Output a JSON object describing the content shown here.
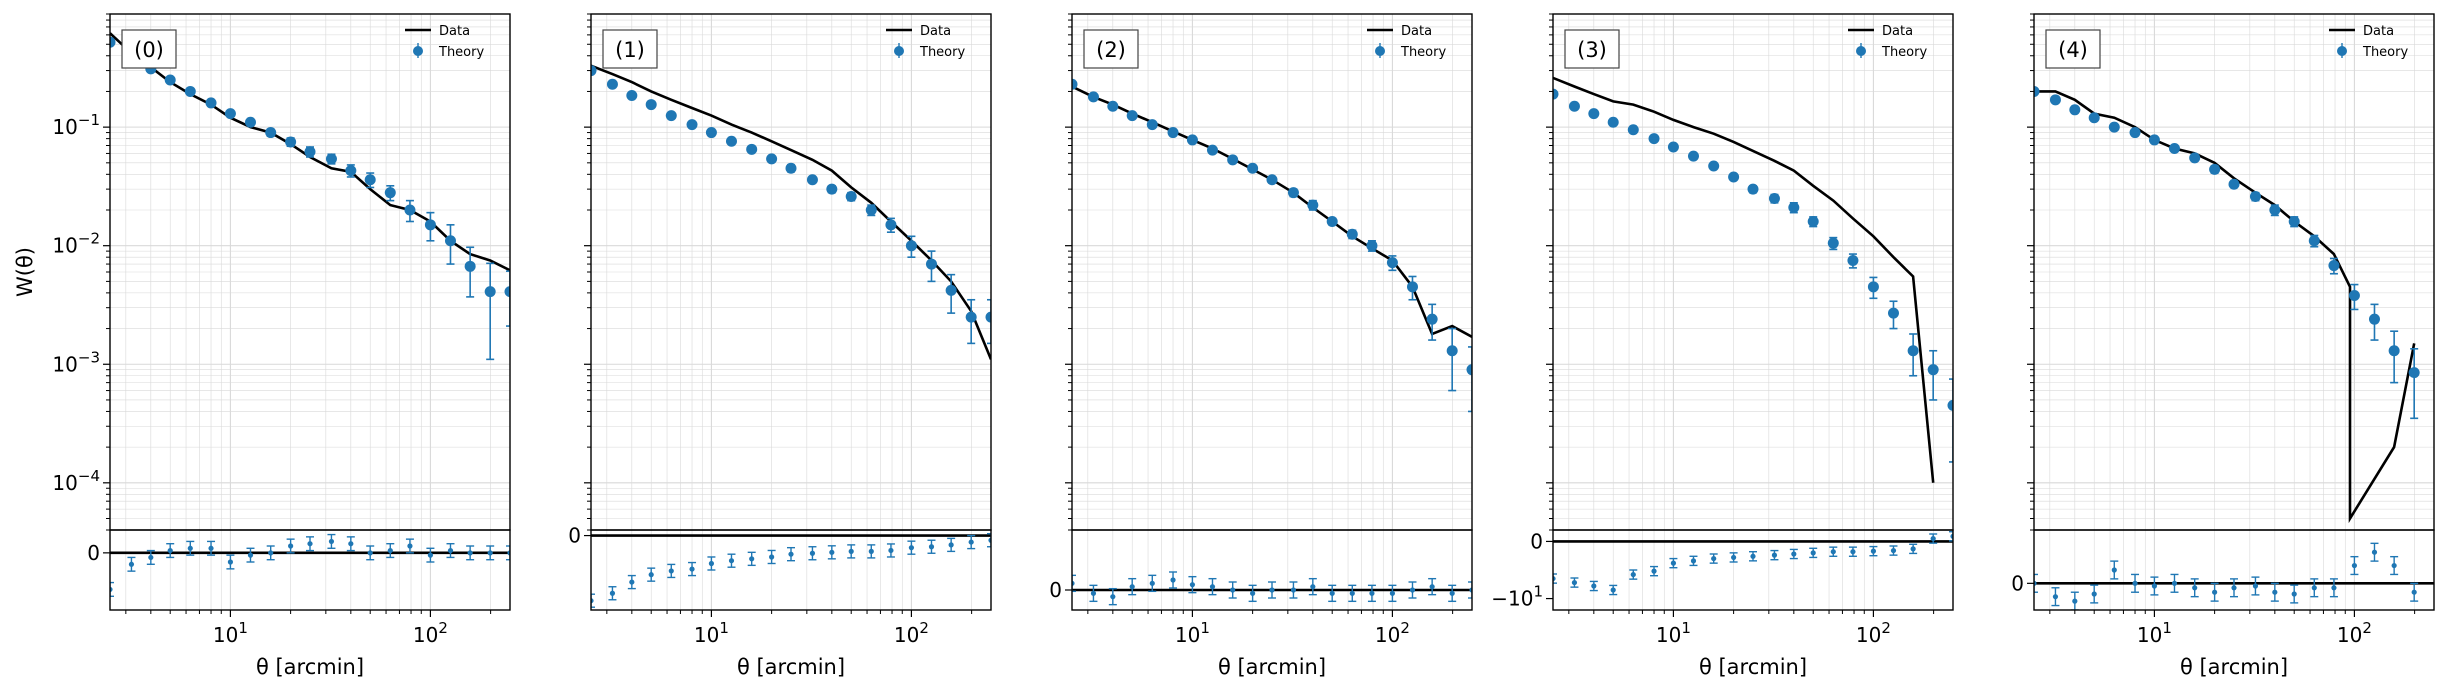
{
  "chart_data": [
    {
      "type": "line",
      "panel_label": "(0)",
      "xlabel": "θ [arcmin]",
      "ylabel": "W(θ)",
      "xscale": "log",
      "yscale": "log",
      "xlim": [
        2.5,
        250
      ],
      "ylim": [
        4e-05,
        0.9
      ],
      "residual_ylim": [
        -0.25,
        0.1
      ],
      "x_tick_labels": [
        "10¹",
        "10²"
      ],
      "y_tick_labels": [
        "10⁻⁴",
        "10⁻³",
        "10⁻²",
        "10⁻¹"
      ],
      "residual_tick_labels": [
        "0"
      ],
      "legend": {
        "position": "top-right",
        "entries": [
          "Data",
          "Theory"
        ]
      },
      "grid": true,
      "series": [
        {
          "name": "Data",
          "style": "line",
          "x": [
            2.5,
            3.2,
            4,
            5,
            6.3,
            8,
            10,
            12.6,
            15.9,
            20,
            25,
            32,
            40,
            50,
            63,
            79,
            100,
            126,
            158,
            199,
            250
          ],
          "y": [
            0.62,
            0.42,
            0.32,
            0.24,
            0.19,
            0.155,
            0.12,
            0.1,
            0.09,
            0.072,
            0.056,
            0.045,
            0.042,
            0.03,
            0.022,
            0.02,
            0.016,
            0.011,
            0.0085,
            0.0075,
            0.0062
          ]
        },
        {
          "name": "Theory",
          "style": "points",
          "x": [
            2.5,
            3.2,
            4,
            5,
            6.3,
            8,
            10,
            12.6,
            15.9,
            20,
            25,
            32,
            40,
            50,
            63,
            79,
            100,
            126,
            158,
            199,
            250
          ],
          "y": [
            0.52,
            0.39,
            0.31,
            0.25,
            0.2,
            0.16,
            0.13,
            0.11,
            0.09,
            0.075,
            0.062,
            0.054,
            0.043,
            0.036,
            0.028,
            0.02,
            0.015,
            0.011,
            0.0067,
            0.0041,
            0.0041
          ],
          "yerr": [
            0.02,
            0.015,
            0.012,
            0.01,
            0.009,
            0.008,
            0.007,
            0.006,
            0.006,
            0.006,
            0.006,
            0.005,
            0.005,
            0.005,
            0.004,
            0.004,
            0.004,
            0.004,
            0.003,
            0.003,
            0.002
          ]
        }
      ],
      "residuals": {
        "x": [
          2.5,
          3.2,
          4,
          5,
          6.3,
          8,
          10,
          12.6,
          15.9,
          20,
          25,
          32,
          40,
          50,
          63,
          79,
          100,
          126,
          158,
          199,
          250
        ],
        "y": [
          -0.16,
          -0.05,
          -0.02,
          0.01,
          0.02,
          0.02,
          -0.04,
          -0.01,
          0.0,
          0.03,
          0.04,
          0.05,
          0.04,
          0.0,
          0.01,
          0.03,
          -0.01,
          0.01,
          0.0,
          0.0,
          0.0
        ],
        "yerr": [
          0.03,
          0.03,
          0.03,
          0.03,
          0.03,
          0.03,
          0.03,
          0.03,
          0.03,
          0.03,
          0.03,
          0.03,
          0.03,
          0.03,
          0.03,
          0.03,
          0.03,
          0.03,
          0.03,
          0.03,
          0.03
        ]
      }
    },
    {
      "type": "line",
      "panel_label": "(1)",
      "xlabel": "θ [arcmin]",
      "ylabel": "",
      "xscale": "log",
      "yscale": "log",
      "xlim": [
        2.5,
        250
      ],
      "ylim": [
        4e-05,
        0.9
      ],
      "residual_ylim": [
        -0.8,
        0.06
      ],
      "x_tick_labels": [
        "10¹",
        "10²"
      ],
      "y_tick_labels": [],
      "residual_tick_labels": [
        "0"
      ],
      "legend": {
        "position": "top-right",
        "entries": [
          "Data",
          "Theory"
        ]
      },
      "grid": true,
      "series": [
        {
          "name": "Data",
          "style": "line",
          "x": [
            2.5,
            3.2,
            4,
            5,
            6.3,
            8,
            10,
            12.6,
            15.9,
            20,
            25,
            32,
            40,
            50,
            63,
            79,
            100,
            126,
            158,
            199,
            250
          ],
          "y": [
            0.33,
            0.28,
            0.24,
            0.2,
            0.17,
            0.145,
            0.125,
            0.105,
            0.09,
            0.076,
            0.064,
            0.053,
            0.043,
            0.031,
            0.023,
            0.016,
            0.011,
            0.0075,
            0.005,
            0.0028,
            0.0011
          ]
        },
        {
          "name": "Theory",
          "style": "points",
          "x": [
            2.5,
            3.2,
            4,
            5,
            6.3,
            8,
            10,
            12.6,
            15.9,
            20,
            25,
            32,
            40,
            50,
            63,
            79,
            100,
            126,
            158,
            199,
            250
          ],
          "y": [
            0.3,
            0.23,
            0.185,
            0.155,
            0.125,
            0.105,
            0.09,
            0.076,
            0.065,
            0.054,
            0.045,
            0.036,
            0.03,
            0.026,
            0.02,
            0.015,
            0.01,
            0.007,
            0.0042,
            0.0025,
            0.0025
          ],
          "yerr": [
            0.01,
            0.008,
            0.006,
            0.005,
            0.004,
            0.004,
            0.004,
            0.003,
            0.003,
            0.003,
            0.003,
            0.002,
            0.002,
            0.002,
            0.002,
            0.002,
            0.002,
            0.002,
            0.0015,
            0.001,
            0.001
          ]
        }
      ],
      "residuals": {
        "x": [
          2.5,
          3.2,
          4,
          5,
          6.3,
          8,
          10,
          12.6,
          15.9,
          20,
          25,
          32,
          40,
          50,
          63,
          79,
          100,
          126,
          158,
          199,
          250
        ],
        "y": [
          -0.7,
          -0.62,
          -0.5,
          -0.42,
          -0.38,
          -0.36,
          -0.3,
          -0.27,
          -0.25,
          -0.23,
          -0.2,
          -0.19,
          -0.18,
          -0.17,
          -0.17,
          -0.16,
          -0.13,
          -0.12,
          -0.1,
          -0.07,
          -0.05
        ],
        "yerr": [
          0.07,
          0.07,
          0.07,
          0.07,
          0.07,
          0.07,
          0.07,
          0.07,
          0.07,
          0.07,
          0.07,
          0.07,
          0.07,
          0.07,
          0.07,
          0.07,
          0.07,
          0.07,
          0.07,
          0.07,
          0.07
        ]
      }
    },
    {
      "type": "line",
      "panel_label": "(2)",
      "xlabel": "θ [arcmin]",
      "ylabel": "",
      "xscale": "log",
      "yscale": "log",
      "xlim": [
        2.5,
        250
      ],
      "ylim": [
        4e-05,
        0.9
      ],
      "residual_ylim": [
        -0.3,
        0.9
      ],
      "x_tick_labels": [
        "10¹",
        "10²"
      ],
      "y_tick_labels": [],
      "residual_tick_labels": [
        "0"
      ],
      "legend": {
        "position": "top-right",
        "entries": [
          "Data",
          "Theory"
        ]
      },
      "grid": true,
      "series": [
        {
          "name": "Data",
          "style": "line",
          "x": [
            2.5,
            3.2,
            4,
            5,
            6.3,
            8,
            10,
            12.6,
            15.9,
            20,
            25,
            32,
            40,
            50,
            63,
            79,
            100,
            126,
            158,
            199,
            250
          ],
          "y": [
            0.22,
            0.18,
            0.155,
            0.13,
            0.11,
            0.092,
            0.078,
            0.066,
            0.054,
            0.044,
            0.036,
            0.028,
            0.021,
            0.016,
            0.012,
            0.0095,
            0.0075,
            0.0045,
            0.0018,
            0.0021,
            0.0017
          ]
        },
        {
          "name": "Theory",
          "style": "points",
          "x": [
            2.5,
            3.2,
            4,
            5,
            6.3,
            8,
            10,
            12.6,
            15.9,
            20,
            25,
            32,
            40,
            50,
            63,
            79,
            100,
            126,
            158,
            199,
            250
          ],
          "y": [
            0.23,
            0.18,
            0.15,
            0.125,
            0.105,
            0.09,
            0.078,
            0.064,
            0.053,
            0.045,
            0.036,
            0.028,
            0.022,
            0.016,
            0.0125,
            0.01,
            0.0072,
            0.0045,
            0.0024,
            0.0013,
            0.0009
          ],
          "yerr": [
            0.01,
            0.008,
            0.006,
            0.005,
            0.004,
            0.003,
            0.003,
            0.003,
            0.002,
            0.002,
            0.002,
            0.002,
            0.002,
            0.001,
            0.001,
            0.001,
            0.001,
            0.001,
            0.0008,
            0.0007,
            0.0005
          ]
        }
      ],
      "residuals": {
        "x": [
          2.5,
          3.2,
          4,
          5,
          6.3,
          8,
          10,
          12.6,
          15.9,
          20,
          25,
          32,
          40,
          50,
          63,
          79,
          100,
          126,
          158,
          199,
          250
        ],
        "y": [
          0.1,
          -0.05,
          -0.1,
          0.05,
          0.1,
          0.15,
          0.08,
          0.05,
          0.0,
          -0.05,
          0.0,
          0.0,
          0.05,
          -0.05,
          -0.05,
          -0.05,
          -0.05,
          0.0,
          0.05,
          -0.05,
          0.0
        ],
        "yerr": [
          0.12,
          0.12,
          0.12,
          0.12,
          0.12,
          0.12,
          0.12,
          0.12,
          0.12,
          0.12,
          0.12,
          0.12,
          0.12,
          0.12,
          0.12,
          0.12,
          0.12,
          0.12,
          0.12,
          0.12,
          0.12
        ]
      }
    },
    {
      "type": "line",
      "panel_label": "(3)",
      "xlabel": "θ [arcmin]",
      "ylabel": "",
      "xscale": "log",
      "yscale": "log",
      "xlim": [
        2.5,
        250
      ],
      "ylim": [
        4e-05,
        0.9
      ],
      "residual_ylim": [
        -12,
        2
      ],
      "x_tick_labels": [
        "10¹",
        "10²"
      ],
      "y_tick_labels": [],
      "residual_tick_labels": [
        "0",
        "−10¹"
      ],
      "legend": {
        "position": "top-right",
        "entries": [
          "Data",
          "Theory"
        ]
      },
      "grid": true,
      "series": [
        {
          "name": "Data",
          "style": "line",
          "x": [
            2.5,
            3.2,
            4,
            5,
            6.3,
            8,
            10,
            12.6,
            15.9,
            20,
            25,
            32,
            40,
            50,
            63,
            79,
            100,
            126,
            158,
            199
          ],
          "y": [
            0.26,
            0.22,
            0.19,
            0.165,
            0.155,
            0.135,
            0.115,
            0.1,
            0.088,
            0.075,
            0.063,
            0.052,
            0.043,
            0.032,
            0.024,
            0.017,
            0.012,
            0.008,
            0.0055,
            0.0001
          ]
        },
        {
          "name": "Theory",
          "style": "points",
          "x": [
            2.5,
            3.2,
            4,
            5,
            6.3,
            8,
            10,
            12.6,
            15.9,
            20,
            25,
            32,
            40,
            50,
            63,
            79,
            100,
            126,
            158,
            199,
            250
          ],
          "y": [
            0.19,
            0.15,
            0.13,
            0.11,
            0.095,
            0.08,
            0.068,
            0.057,
            0.047,
            0.038,
            0.03,
            0.025,
            0.021,
            0.016,
            0.0105,
            0.0075,
            0.0045,
            0.0027,
            0.0013,
            0.0009,
            0.00045
          ],
          "yerr": [
            0.006,
            0.005,
            0.004,
            0.004,
            0.003,
            0.003,
            0.003,
            0.002,
            0.002,
            0.002,
            0.002,
            0.002,
            0.002,
            0.0015,
            0.0012,
            0.001,
            0.0009,
            0.0007,
            0.0005,
            0.0004,
            0.0003
          ]
        }
      ],
      "residuals": {
        "x": [
          2.5,
          3.2,
          4,
          5,
          6.3,
          8,
          10,
          12.6,
          15.9,
          20,
          25,
          32,
          40,
          50,
          63,
          79,
          100,
          126,
          158,
          199,
          250
        ],
        "y": [
          -6.5,
          -7.2,
          -7.8,
          -8.5,
          -5.8,
          -5.2,
          -3.8,
          -3.4,
          -3.0,
          -2.8,
          -2.6,
          -2.4,
          -2.2,
          -2.0,
          -1.8,
          -1.8,
          -1.7,
          -1.6,
          -1.3,
          0.5,
          0.9
        ],
        "yerr": [
          0.8,
          0.8,
          0.8,
          0.8,
          0.8,
          0.8,
          0.8,
          0.8,
          0.8,
          0.8,
          0.8,
          0.8,
          0.8,
          0.8,
          0.8,
          0.8,
          0.8,
          0.8,
          0.8,
          0.8,
          0.8
        ]
      }
    },
    {
      "type": "line",
      "panel_label": "(4)",
      "xlabel": "θ [arcmin]",
      "ylabel": "",
      "xscale": "log",
      "yscale": "log",
      "xlim": [
        2.5,
        250
      ],
      "ylim": [
        4e-05,
        0.9
      ],
      "residual_ylim": [
        -0.3,
        0.6
      ],
      "x_tick_labels": [
        "10¹",
        "10²"
      ],
      "y_tick_labels": [],
      "residual_tick_labels": [
        "0"
      ],
      "legend": {
        "position": "top-right",
        "entries": [
          "Data",
          "Theory"
        ]
      },
      "grid": true,
      "series": [
        {
          "name": "Data",
          "style": "line",
          "x": [
            2.5,
            3.2,
            4,
            5,
            6.3,
            8,
            10,
            12.6,
            15.9,
            20,
            25,
            32,
            40,
            50,
            63,
            79,
            95,
            95,
            158,
            158,
            199
          ],
          "y": [
            0.2,
            0.2,
            0.17,
            0.13,
            0.12,
            0.1,
            0.078,
            0.066,
            0.06,
            0.05,
            0.037,
            0.028,
            0.022,
            0.016,
            0.012,
            0.0085,
            0.0045,
            5e-05,
            0.0002,
            0.0002,
            0.0015
          ]
        },
        {
          "name": "Theory",
          "style": "points",
          "x": [
            2.5,
            3.2,
            4,
            5,
            6.3,
            8,
            10,
            12.6,
            15.9,
            20,
            25,
            32,
            40,
            50,
            63,
            79,
            100,
            126,
            158,
            199
          ],
          "y": [
            0.2,
            0.17,
            0.14,
            0.12,
            0.1,
            0.09,
            0.078,
            0.066,
            0.055,
            0.044,
            0.033,
            0.026,
            0.02,
            0.016,
            0.011,
            0.0068,
            0.0038,
            0.0024,
            0.0013,
            0.00085
          ],
          "yerr": [
            0.01,
            0.008,
            0.007,
            0.006,
            0.005,
            0.004,
            0.004,
            0.003,
            0.003,
            0.003,
            0.002,
            0.002,
            0.002,
            0.0015,
            0.0012,
            0.001,
            0.0009,
            0.0008,
            0.0006,
            0.0005
          ]
        }
      ],
      "residuals": {
        "x": [
          2.5,
          3.2,
          4,
          5,
          6.3,
          8,
          10,
          12.6,
          15.9,
          20,
          25,
          32,
          40,
          50,
          63,
          79,
          100,
          126,
          158,
          199
        ],
        "y": [
          0.0,
          -0.15,
          -0.2,
          -0.12,
          0.15,
          0.0,
          -0.03,
          0.0,
          -0.05,
          -0.1,
          -0.05,
          -0.03,
          -0.1,
          -0.12,
          -0.05,
          -0.05,
          0.2,
          0.35,
          0.2,
          -0.1
        ],
        "yerr": [
          0.1,
          0.1,
          0.1,
          0.1,
          0.1,
          0.1,
          0.1,
          0.1,
          0.1,
          0.1,
          0.1,
          0.1,
          0.1,
          0.1,
          0.1,
          0.1,
          0.1,
          0.1,
          0.1,
          0.1
        ]
      }
    }
  ],
  "colors": {
    "data_line": "#000000",
    "theory_points": "#1f77b4",
    "grid": "#d9d9d9"
  }
}
